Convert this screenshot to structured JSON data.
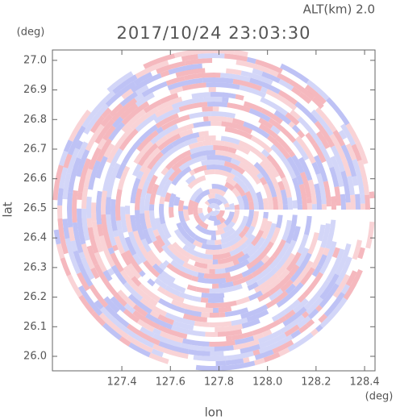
{
  "chart_data": {
    "type": "radar-ppi",
    "title": "2017/10/24 23:03:30",
    "subtitle": "ALT(km) 2.0",
    "x_label": "lon",
    "y_label": "lat",
    "x_unit": "(deg)",
    "y_unit": "(deg)",
    "xlim": [
      127.114,
      128.443
    ],
    "ylim": [
      25.951,
      27.035
    ],
    "xticks": [
      127.4,
      127.6,
      127.8,
      {
        "value": 128.0,
        "label": "128.0"
      },
      128.2,
      128.4
    ],
    "yticks": [
      {
        "value": 26.0,
        "label": "26.0"
      },
      26.1,
      26.2,
      26.3,
      26.4,
      26.5,
      26.6,
      26.7,
      26.8,
      26.9,
      {
        "value": 27.0,
        "label": "27.0"
      }
    ]
  }
}
